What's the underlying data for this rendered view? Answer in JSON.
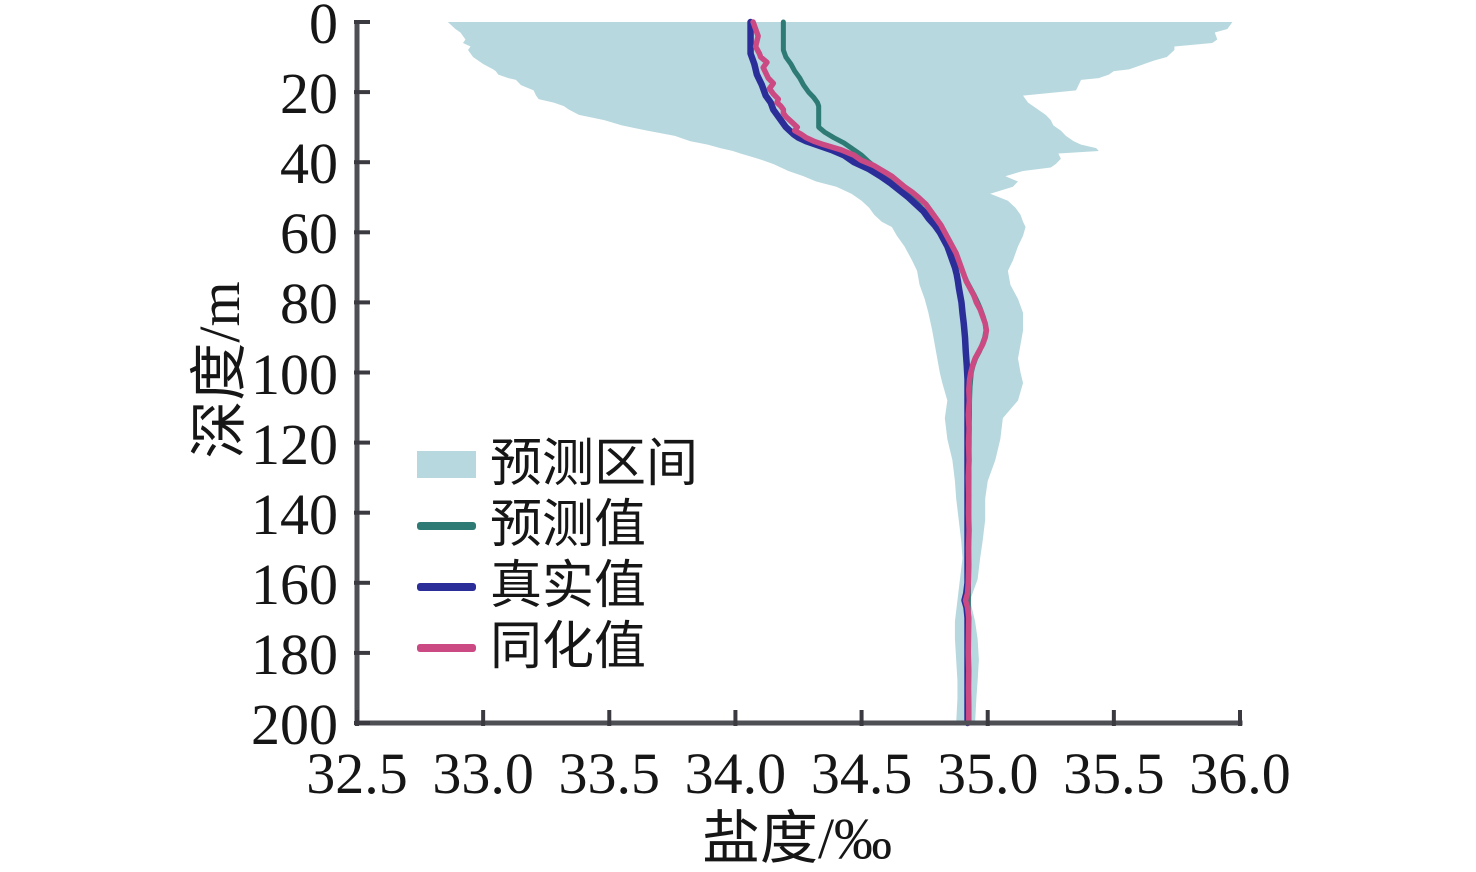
{
  "axes": {
    "x_label": "盐度/‰",
    "y_label": "深度/m",
    "x_ticks": [
      "32.5",
      "33.0",
      "33.5",
      "34.0",
      "34.5",
      "35.0",
      "35.5",
      "36.0"
    ],
    "y_ticks": [
      "0",
      "20",
      "40",
      "60",
      "80",
      "100",
      "120",
      "140",
      "160",
      "180",
      "200"
    ],
    "axis_color": "#4e4e55",
    "tick_color": "#3a3a40",
    "text_color": "#161616"
  },
  "legend": {
    "items": [
      {
        "label": "预测区间",
        "type": "band",
        "color": "#b7d8de"
      },
      {
        "label": "预测值",
        "type": "line",
        "color": "#2e7a74"
      },
      {
        "label": "真实值",
        "type": "line",
        "color": "#2b2e98"
      },
      {
        "label": "同化值",
        "type": "line",
        "color": "#cb4a84"
      }
    ]
  },
  "chart_data": {
    "type": "line",
    "title": "",
    "xlabel": "盐度/‰",
    "ylabel": "深度/m",
    "xlim": [
      32.5,
      36.0
    ],
    "ylim": [
      0,
      200
    ],
    "y_inverted": true,
    "grid": false,
    "legend_position": "center-left",
    "band": {
      "name": "预测区间",
      "color": "#b7d8de",
      "points_depth_lo_hi": [
        [
          0,
          32.86,
          35.97
        ],
        [
          2,
          32.89,
          35.95
        ],
        [
          3,
          32.91,
          35.9
        ],
        [
          5,
          32.93,
          35.91
        ],
        [
          6,
          32.92,
          35.89
        ],
        [
          7,
          32.95,
          35.74
        ],
        [
          8,
          32.94,
          35.74
        ],
        [
          10,
          32.96,
          35.71
        ],
        [
          11,
          32.98,
          35.66
        ],
        [
          12,
          33.0,
          35.62
        ],
        [
          13.5,
          33.04,
          35.56
        ],
        [
          14,
          33.05,
          35.5
        ],
        [
          15,
          33.06,
          35.48
        ],
        [
          16,
          33.1,
          35.44
        ],
        [
          16.5,
          33.13,
          35.37
        ],
        [
          18,
          33.15,
          35.36
        ],
        [
          19.5,
          33.2,
          35.35
        ],
        [
          21,
          33.21,
          35.14
        ],
        [
          22,
          33.22,
          35.15
        ],
        [
          23,
          33.28,
          35.16
        ],
        [
          24,
          33.32,
          35.18
        ],
        [
          25,
          33.34,
          35.2
        ],
        [
          26.5,
          33.38,
          35.23
        ],
        [
          28,
          33.48,
          35.25
        ],
        [
          29.5,
          33.55,
          35.26
        ],
        [
          31,
          33.65,
          35.29
        ],
        [
          32.5,
          33.76,
          35.31
        ],
        [
          34,
          33.82,
          35.34
        ],
        [
          35,
          33.89,
          35.37
        ],
        [
          36,
          33.94,
          35.43
        ],
        [
          36.8,
          33.99,
          35.44
        ],
        [
          37.5,
          34.02,
          35.28
        ],
        [
          39,
          34.09,
          35.29
        ],
        [
          40.5,
          34.15,
          35.27
        ],
        [
          41.5,
          34.18,
          35.25
        ],
        [
          42.5,
          34.21,
          35.14
        ],
        [
          44,
          34.27,
          35.07
        ],
        [
          45.5,
          34.32,
          35.12
        ],
        [
          47,
          34.4,
          35.1
        ],
        [
          49,
          34.46,
          35.01
        ],
        [
          51,
          34.5,
          35.08
        ],
        [
          53,
          34.53,
          35.11
        ],
        [
          55,
          34.55,
          35.13
        ],
        [
          57,
          34.58,
          35.14
        ],
        [
          58.5,
          34.62,
          35.15
        ],
        [
          61,
          34.64,
          35.14
        ],
        [
          64,
          34.67,
          35.12
        ],
        [
          68,
          34.7,
          35.1
        ],
        [
          71,
          34.72,
          35.08
        ],
        [
          75,
          34.73,
          35.09
        ],
        [
          79,
          34.75,
          35.12
        ],
        [
          83,
          34.765,
          35.14
        ],
        [
          88,
          34.78,
          35.14
        ],
        [
          92,
          34.79,
          35.13
        ],
        [
          96,
          34.8,
          35.12
        ],
        [
          100,
          34.81,
          35.13
        ],
        [
          103,
          34.82,
          35.14
        ],
        [
          108,
          34.84,
          35.12
        ],
        [
          113,
          34.83,
          35.06
        ],
        [
          119,
          34.84,
          35.05
        ],
        [
          125,
          34.86,
          35.03
        ],
        [
          131,
          34.87,
          35.0
        ],
        [
          136,
          34.875,
          34.99
        ],
        [
          142,
          34.885,
          34.99
        ],
        [
          148,
          34.895,
          34.98
        ],
        [
          153,
          34.9,
          34.97
        ],
        [
          159,
          34.89,
          34.96
        ],
        [
          165,
          34.88,
          34.93
        ],
        [
          171,
          34.87,
          34.95
        ],
        [
          176,
          34.87,
          34.96
        ],
        [
          182,
          34.875,
          34.965
        ],
        [
          188,
          34.88,
          34.96
        ],
        [
          193,
          34.88,
          34.955
        ],
        [
          200,
          34.875,
          34.95
        ]
      ]
    },
    "series": [
      {
        "name": "预测值",
        "color": "#2e7a74",
        "width": 5,
        "points_depth_salinity": [
          [
            0,
            34.19
          ],
          [
            8,
            34.19
          ],
          [
            10,
            34.2
          ],
          [
            12,
            34.22
          ],
          [
            14,
            34.235
          ],
          [
            16,
            34.255
          ],
          [
            18,
            34.27
          ],
          [
            20,
            34.29
          ],
          [
            21.5,
            34.31
          ],
          [
            23,
            34.325
          ],
          [
            24,
            34.33
          ],
          [
            30,
            34.33
          ],
          [
            31.5,
            34.355
          ],
          [
            33,
            34.39
          ],
          [
            34.5,
            34.43
          ],
          [
            36,
            34.46
          ],
          [
            38,
            34.5
          ],
          [
            40,
            34.53
          ],
          [
            42,
            34.565
          ],
          [
            44,
            34.6
          ],
          [
            46,
            34.635
          ],
          [
            48,
            34.665
          ],
          [
            50,
            34.695
          ],
          [
            52,
            34.725
          ],
          [
            54,
            34.75
          ],
          [
            56,
            34.775
          ],
          [
            58,
            34.795
          ],
          [
            60,
            34.815
          ],
          [
            62,
            34.833
          ],
          [
            64,
            34.85
          ],
          [
            66,
            34.865
          ],
          [
            68,
            34.88
          ],
          [
            70,
            34.893
          ],
          [
            72,
            34.905
          ],
          [
            74,
            34.917
          ],
          [
            76,
            34.932
          ],
          [
            78,
            34.947
          ],
          [
            80,
            34.96
          ],
          [
            82,
            34.972
          ],
          [
            84,
            34.982
          ],
          [
            86,
            34.99
          ],
          [
            88,
            34.993
          ],
          [
            90,
            34.988
          ],
          [
            92,
            34.978
          ],
          [
            94,
            34.967
          ],
          [
            96,
            34.952
          ],
          [
            98,
            34.942
          ],
          [
            100,
            34.935
          ],
          [
            104,
            34.93
          ],
          [
            108,
            34.928
          ],
          [
            115,
            34.927
          ],
          [
            125,
            34.926
          ],
          [
            140,
            34.925
          ],
          [
            160,
            34.924
          ],
          [
            180,
            34.922
          ],
          [
            200,
            34.924
          ]
        ]
      },
      {
        "name": "真实值",
        "color": "#2b2e98",
        "width": 6.5,
        "points_depth_salinity": [
          [
            0,
            34.06
          ],
          [
            9,
            34.06
          ],
          [
            12,
            34.075
          ],
          [
            15,
            34.085
          ],
          [
            18,
            34.105
          ],
          [
            21,
            34.12
          ],
          [
            23,
            34.14
          ],
          [
            25,
            34.15
          ],
          [
            26,
            34.16
          ],
          [
            28,
            34.18
          ],
          [
            30,
            34.2
          ],
          [
            32,
            34.23
          ],
          [
            33,
            34.25
          ],
          [
            34,
            34.28
          ],
          [
            35,
            34.32
          ],
          [
            36.5,
            34.38
          ],
          [
            38,
            34.43
          ],
          [
            40,
            34.47
          ],
          [
            42,
            34.53
          ],
          [
            44,
            34.575
          ],
          [
            46,
            34.615
          ],
          [
            48,
            34.65
          ],
          [
            50,
            34.685
          ],
          [
            52,
            34.715
          ],
          [
            54,
            34.745
          ],
          [
            56,
            34.765
          ],
          [
            58,
            34.79
          ],
          [
            60,
            34.81
          ],
          [
            62,
            34.825
          ],
          [
            64,
            34.84
          ],
          [
            66,
            34.85
          ],
          [
            68,
            34.86
          ],
          [
            70,
            34.87
          ],
          [
            72,
            34.877
          ],
          [
            74,
            34.882
          ],
          [
            76,
            34.886
          ],
          [
            78,
            34.891
          ],
          [
            80,
            34.896
          ],
          [
            83,
            34.9
          ],
          [
            86,
            34.905
          ],
          [
            90,
            34.91
          ],
          [
            94,
            34.913
          ],
          [
            98,
            34.917
          ],
          [
            102,
            34.92
          ],
          [
            110,
            34.92
          ],
          [
            120,
            34.92
          ],
          [
            130,
            34.92
          ],
          [
            140,
            34.92
          ],
          [
            150,
            34.92
          ],
          [
            160,
            34.92
          ],
          [
            163,
            34.915
          ],
          [
            165,
            34.908
          ],
          [
            167,
            34.916
          ],
          [
            170,
            34.92
          ],
          [
            180,
            34.92
          ],
          [
            190,
            34.92
          ],
          [
            200,
            34.92
          ]
        ]
      },
      {
        "name": "同化值",
        "color": "#cb4a84",
        "width": 5.5,
        "points_depth_salinity": [
          [
            0,
            34.07
          ],
          [
            2,
            34.08
          ],
          [
            4,
            34.09
          ],
          [
            5.5,
            34.085
          ],
          [
            7,
            34.08
          ],
          [
            9,
            34.095
          ],
          [
            10,
            34.1
          ],
          [
            11.5,
            34.125
          ],
          [
            13,
            34.11
          ],
          [
            14.5,
            34.12
          ],
          [
            16,
            34.13
          ],
          [
            17.5,
            34.15
          ],
          [
            19,
            34.135
          ],
          [
            20.5,
            34.15
          ],
          [
            22,
            34.17
          ],
          [
            23,
            34.165
          ],
          [
            24,
            34.18
          ],
          [
            25,
            34.19
          ],
          [
            26,
            34.19
          ],
          [
            27,
            34.2
          ],
          [
            28,
            34.215
          ],
          [
            29,
            34.23
          ],
          [
            30,
            34.245
          ],
          [
            31,
            34.235
          ],
          [
            32,
            34.26
          ],
          [
            33,
            34.28
          ],
          [
            34,
            34.31
          ],
          [
            35,
            34.35
          ],
          [
            36.5,
            34.42
          ],
          [
            38,
            34.47
          ],
          [
            39.5,
            34.5
          ],
          [
            41,
            34.55
          ],
          [
            42.5,
            34.585
          ],
          [
            44,
            34.62
          ],
          [
            45.5,
            34.645
          ],
          [
            47,
            34.67
          ],
          [
            48.5,
            34.7
          ],
          [
            50,
            34.725
          ],
          [
            52,
            34.755
          ],
          [
            54,
            34.775
          ],
          [
            56,
            34.795
          ],
          [
            58,
            34.815
          ],
          [
            60,
            34.83
          ],
          [
            62,
            34.845
          ],
          [
            64,
            34.86
          ],
          [
            66,
            34.875
          ],
          [
            68,
            34.885
          ],
          [
            70,
            34.895
          ],
          [
            72,
            34.905
          ],
          [
            74,
            34.915
          ],
          [
            76,
            34.93
          ],
          [
            78,
            34.945
          ],
          [
            80,
            34.955
          ],
          [
            82,
            34.97
          ],
          [
            84,
            34.98
          ],
          [
            86,
            34.99
          ],
          [
            88,
            34.995
          ],
          [
            90,
            34.99
          ],
          [
            92,
            34.98
          ],
          [
            94,
            34.965
          ],
          [
            96,
            34.95
          ],
          [
            98,
            34.94
          ],
          [
            100,
            34.933
          ],
          [
            102,
            34.928
          ],
          [
            105,
            34.925
          ],
          [
            108,
            34.927
          ],
          [
            112,
            34.923
          ],
          [
            116,
            34.926
          ],
          [
            120,
            34.924
          ],
          [
            125,
            34.926
          ],
          [
            130,
            34.923
          ],
          [
            135,
            34.925
          ],
          [
            140,
            34.924
          ],
          [
            145,
            34.926
          ],
          [
            150,
            34.924
          ],
          [
            155,
            34.925
          ],
          [
            160,
            34.923
          ],
          [
            163,
            34.92
          ],
          [
            165,
            34.912
          ],
          [
            167,
            34.92
          ],
          [
            170,
            34.925
          ],
          [
            175,
            34.924
          ],
          [
            180,
            34.923
          ],
          [
            185,
            34.925
          ],
          [
            190,
            34.924
          ],
          [
            195,
            34.925
          ],
          [
            200,
            34.925
          ]
        ]
      }
    ]
  }
}
